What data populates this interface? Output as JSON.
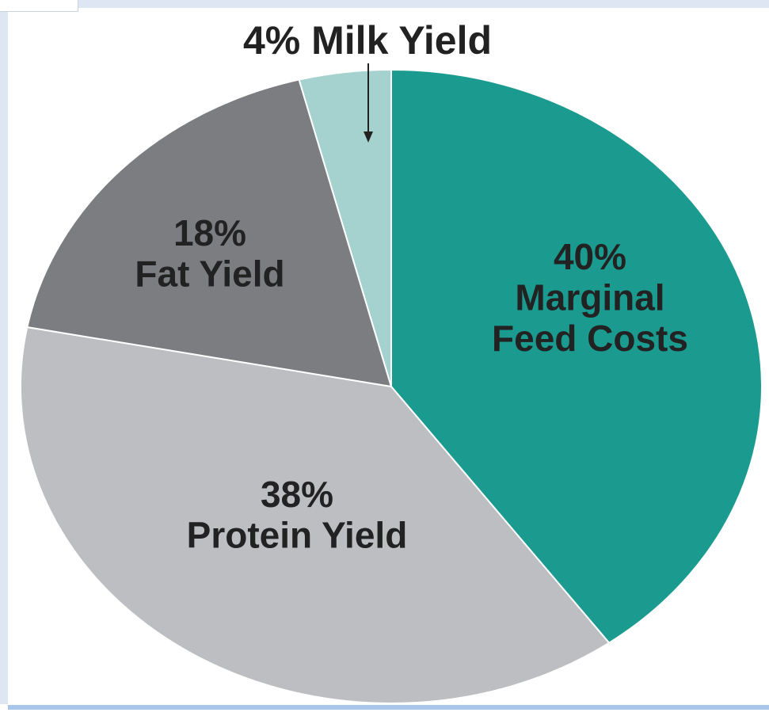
{
  "chart_data": {
    "type": "pie",
    "start": "top",
    "direction": "clockwise",
    "slices": [
      {
        "name": "Marginal Feed Costs",
        "value": 40,
        "pct_label": "40%",
        "lines": [
          "Marginal",
          "Feed Costs"
        ],
        "color": "#1b9b8f"
      },
      {
        "name": "Protein Yield",
        "value": 38,
        "pct_label": "38%",
        "lines": [
          "Protein Yield"
        ],
        "color": "#bdbec2"
      },
      {
        "name": "Fat Yield",
        "value": 18,
        "pct_label": "18%",
        "lines": [
          "Fat Yield"
        ],
        "color": "#7c7d81"
      },
      {
        "name": "Milk Yield",
        "value": 4,
        "pct_label": "4%",
        "lines": [
          "Milk Yield"
        ],
        "color": "#a5d2cf"
      }
    ],
    "callout": {
      "slice": "Milk Yield",
      "text": "4% Milk Yield"
    }
  }
}
